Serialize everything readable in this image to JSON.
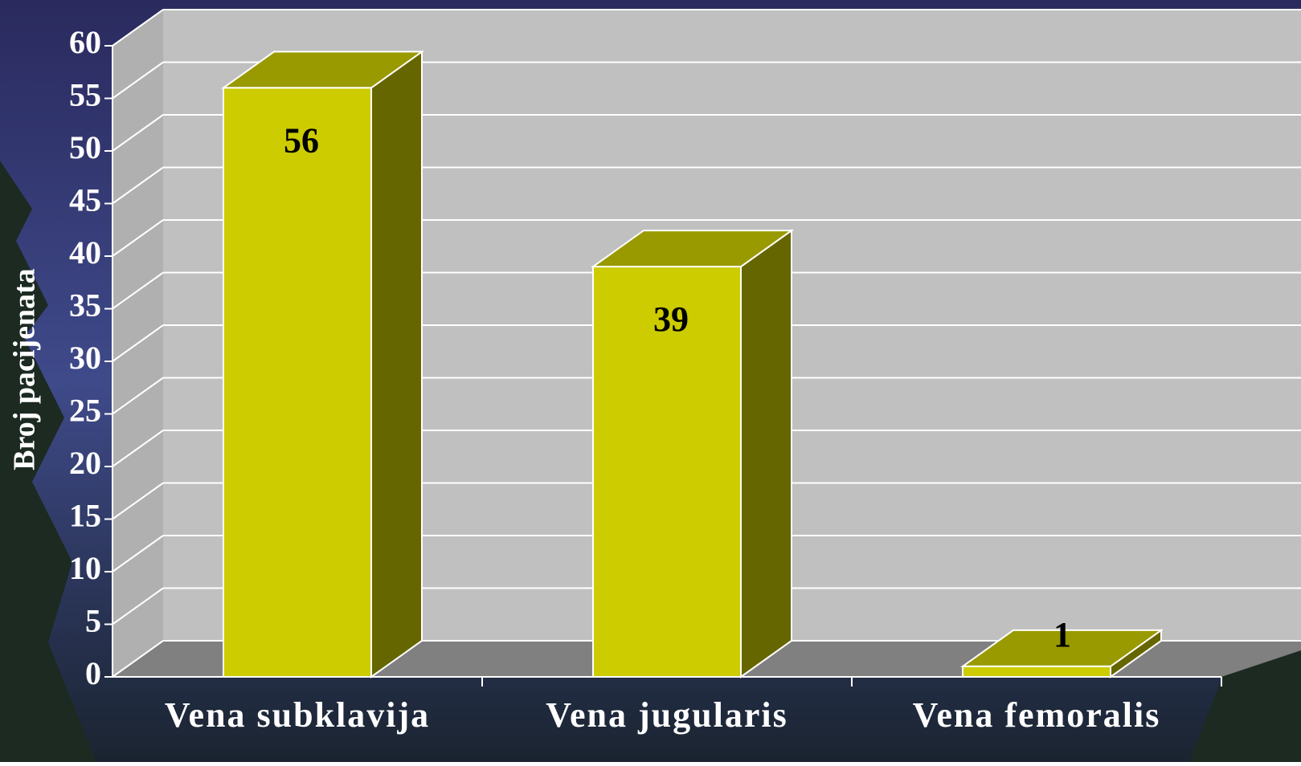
{
  "chart_data": {
    "type": "bar",
    "y_label": "Broj pacijenata",
    "categories": [
      "Vena subklavija",
      "Vena jugularis",
      "Vena femoralis"
    ],
    "values": [
      56,
      39,
      1
    ],
    "color": "#cccc00",
    "ylim": [
      0,
      60
    ],
    "yticks": [
      0,
      5,
      10,
      15,
      20,
      25,
      30,
      35,
      40,
      45,
      50,
      55,
      60
    ],
    "grid": true
  }
}
